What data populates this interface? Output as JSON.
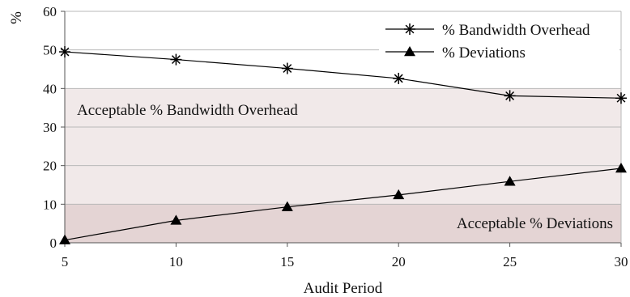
{
  "chart_data": {
    "type": "line",
    "x": [
      5,
      10,
      15,
      20,
      25,
      30
    ],
    "series": [
      {
        "name": "% Bandwidth Overhead",
        "marker": "asterisk",
        "values": [
          49.5,
          47.5,
          45.2,
          42.6,
          38.1,
          37.5
        ]
      },
      {
        "name": "% Deviations",
        "marker": "triangle",
        "values": [
          0.7,
          5.8,
          9.3,
          12.4,
          15.9,
          19.3
        ]
      }
    ],
    "xlabel": "Audit Period",
    "ylabel": "%",
    "xlim": [
      5,
      30
    ],
    "ylim": [
      0,
      60
    ],
    "xticks": [
      5,
      10,
      15,
      20,
      25,
      30
    ],
    "yticks": [
      0,
      10,
      20,
      30,
      40,
      50,
      60
    ],
    "grid": "horizontal",
    "legend_position": "top-right",
    "bands": [
      {
        "label": "Acceptable % Bandwidth Overhead",
        "from": 10,
        "to": 40,
        "color": "#f1e9e9"
      },
      {
        "label": "Acceptable % Deviations",
        "from": 0,
        "to": 10,
        "color": "#e4d4d4"
      }
    ]
  }
}
